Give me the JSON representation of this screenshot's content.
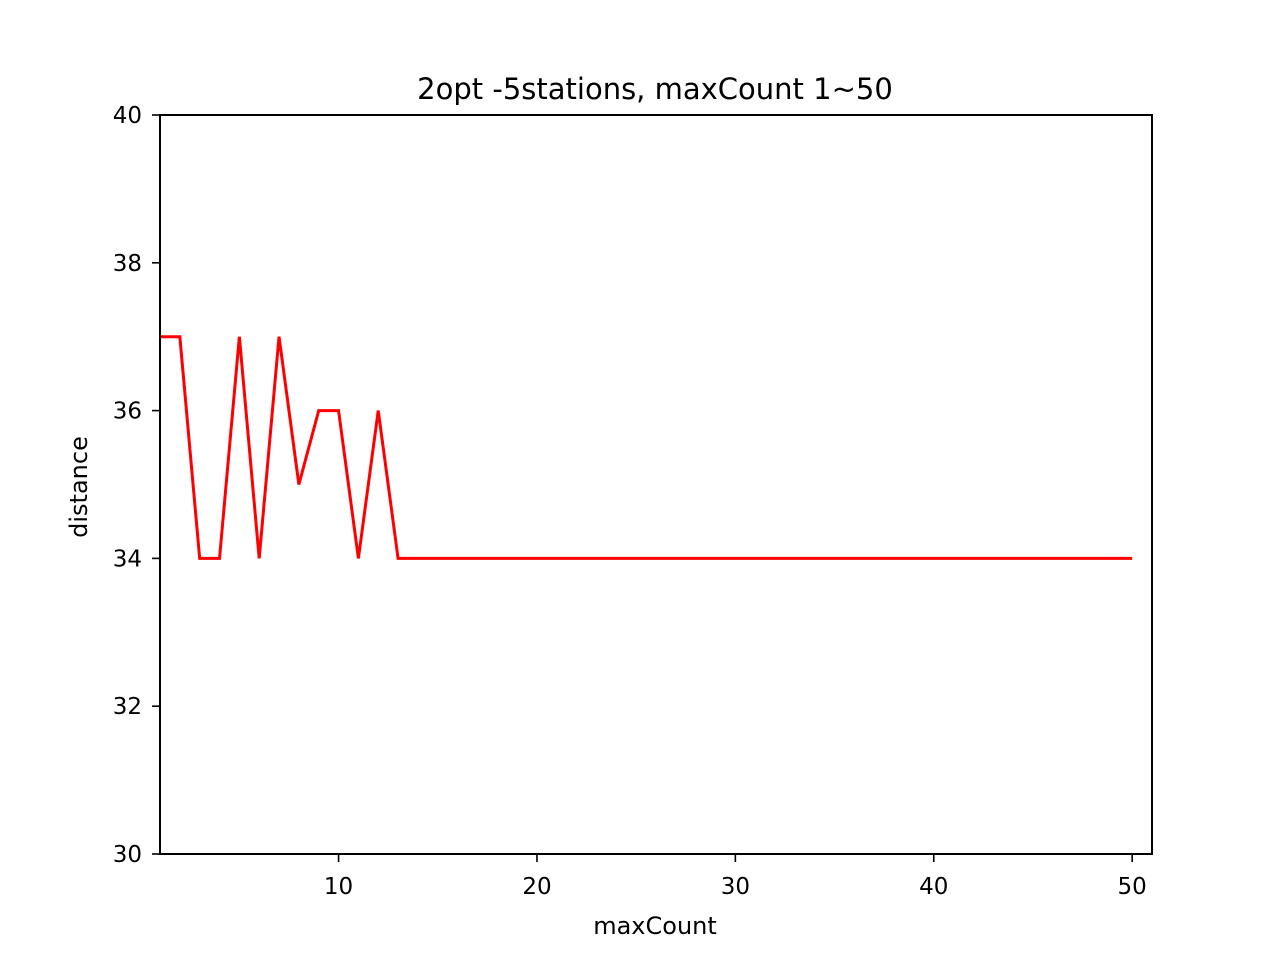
{
  "chart_data": {
    "type": "line",
    "title": "2opt -5stations, maxCount 1~50",
    "xlabel": "maxCount",
    "ylabel": "distance",
    "xlim": [
      1,
      51
    ],
    "ylim": [
      30,
      40
    ],
    "x_ticks": [
      10,
      20,
      30,
      40,
      50
    ],
    "y_ticks": [
      30,
      32,
      34,
      36,
      38,
      40
    ],
    "grid": false,
    "series": [
      {
        "color": "#ff0000",
        "x": [
          1,
          2,
          3,
          4,
          5,
          6,
          7,
          8,
          9,
          10,
          11,
          12,
          13,
          14,
          15,
          16,
          17,
          18,
          19,
          20,
          21,
          22,
          23,
          24,
          25,
          26,
          27,
          28,
          29,
          30,
          31,
          32,
          33,
          34,
          35,
          36,
          37,
          38,
          39,
          40,
          41,
          42,
          43,
          44,
          45,
          46,
          47,
          48,
          49,
          50
        ],
        "values": [
          37,
          37,
          34,
          34,
          37,
          34,
          37,
          35,
          36,
          36,
          34,
          36,
          34,
          34,
          34,
          34,
          34,
          34,
          34,
          34,
          34,
          34,
          34,
          34,
          34,
          34,
          34,
          34,
          34,
          34,
          34,
          34,
          34,
          34,
          34,
          34,
          34,
          34,
          34,
          34,
          34,
          34,
          34,
          34,
          34,
          34,
          34,
          34,
          34,
          34
        ]
      }
    ]
  }
}
